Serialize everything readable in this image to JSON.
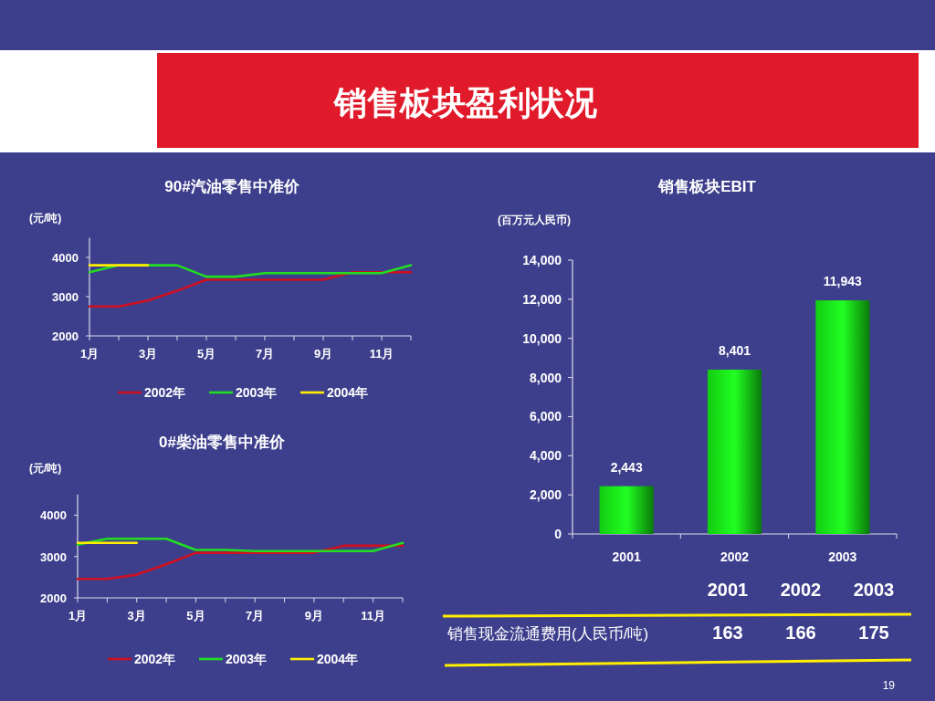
{
  "chart_data": [
    {
      "type": "other",
      "title": "销售板块盈利状况",
      "annotations": [
        "19"
      ]
    },
    {
      "type": "line",
      "title": "90#汽油零售中准价",
      "ylabel": "(元/吨)",
      "categories": [
        "1月",
        null,
        "3月",
        null,
        "5月",
        null,
        "7月",
        null,
        "9月",
        null,
        "11月",
        null
      ],
      "ylim": [
        2000,
        4500
      ],
      "yticks": [
        2000,
        3000,
        4000
      ],
      "legend": "bottom",
      "grid": false,
      "marker": "none",
      "line_style": "solid",
      "series": [
        {
          "name": "2002年",
          "color": "#d01020",
          "values": [
            2750,
            2750,
            2900,
            3150,
            3430,
            3430,
            3430,
            3430,
            3430,
            3620,
            3620,
            3620
          ]
        },
        {
          "name": "2003年",
          "color": "#22dd22",
          "values": [
            3620,
            3800,
            3800,
            3800,
            3510,
            3510,
            3600,
            3600,
            3600,
            3600,
            3600,
            3800
          ]
        },
        {
          "name": "2004年",
          "color": "#ffee00",
          "values": [
            3800,
            3800,
            3800,
            null,
            null,
            null,
            null,
            null,
            null,
            null,
            null,
            null
          ]
        }
      ]
    },
    {
      "type": "line",
      "title": "0#柴油零售中准价",
      "ylabel": "(元/吨)",
      "categories": [
        "1月",
        null,
        "3月",
        null,
        "5月",
        null,
        "7月",
        null,
        "9月",
        null,
        "11月",
        null
      ],
      "ylim": [
        2000,
        4500
      ],
      "yticks": [
        2000,
        3000,
        4000
      ],
      "legend": "bottom",
      "grid": false,
      "marker": "none",
      "line_style": "solid",
      "series": [
        {
          "name": "2002年",
          "color": "#d01020",
          "values": [
            2460,
            2460,
            2560,
            2810,
            3090,
            3090,
            3090,
            3090,
            3090,
            3260,
            3260,
            3260
          ]
        },
        {
          "name": "2003年",
          "color": "#22dd22",
          "values": [
            3290,
            3430,
            3430,
            3430,
            3160,
            3160,
            3130,
            3130,
            3130,
            3130,
            3130,
            3330
          ]
        },
        {
          "name": "2004年",
          "color": "#ffee00",
          "values": [
            3330,
            3330,
            3330,
            null,
            null,
            null,
            null,
            null,
            null,
            null,
            null,
            null
          ]
        }
      ]
    },
    {
      "type": "bar",
      "title": "销售板块EBIT",
      "ylabel": "(百万元人民币)",
      "categories": [
        "2001",
        "2002",
        "2003"
      ],
      "values": [
        2443,
        8401,
        11943
      ],
      "color": "#11cc11",
      "value_labels": [
        "2,443",
        "8,401",
        "11,943"
      ],
      "ylim": [
        0,
        14000
      ],
      "yticks": [
        {
          "value": 0,
          "label": "0"
        },
        {
          "value": 2000,
          "label": "2,000"
        },
        {
          "value": 4000,
          "label": "4,000"
        },
        {
          "value": 6000,
          "label": "6,000"
        },
        {
          "value": 8000,
          "label": "8,000"
        },
        {
          "value": 10000,
          "label": "10,000"
        },
        {
          "value": 12000,
          "label": "12,000"
        },
        {
          "value": 14000,
          "label": "14,000"
        }
      ],
      "grid": false
    },
    {
      "type": "other",
      "annotations": [
        "2001",
        "2002",
        "2003",
        "销售现金流通费用(人民币/吨)",
        "163",
        "166",
        "175"
      ]
    }
  ]
}
